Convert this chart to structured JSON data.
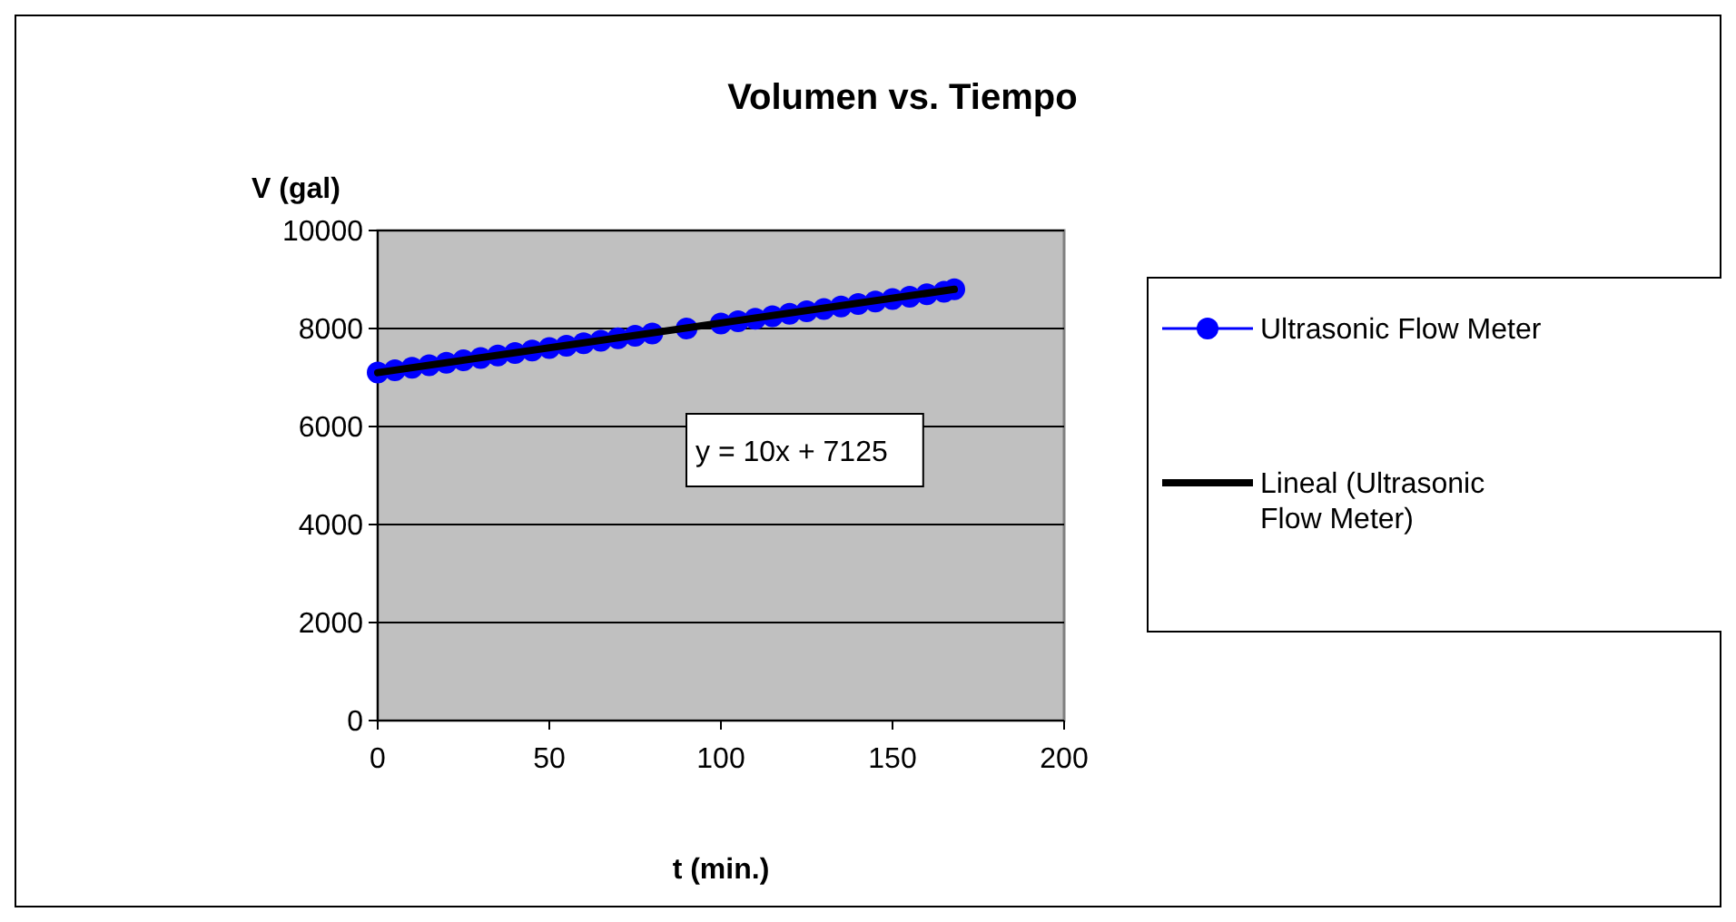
{
  "chart_data": {
    "type": "scatter",
    "title": "Volumen vs. Tiempo",
    "xlabel": "t (min.)",
    "ylabel": "V (gal)",
    "xlim": [
      0,
      200
    ],
    "xticks": [
      0,
      50,
      100,
      150,
      200
    ],
    "ylim": [
      0,
      10000
    ],
    "yticks": [
      0,
      2000,
      4000,
      6000,
      8000,
      10000
    ],
    "grid": "y",
    "legend": "right",
    "marker": "circle",
    "annotations": [
      "y = 10x + 7125"
    ],
    "series": [
      {
        "name": "Ultrasonic Flow Meter",
        "color": "#0000ff",
        "x": [
          0,
          5,
          10,
          15,
          20,
          25,
          30,
          35,
          40,
          45,
          50,
          55,
          60,
          65,
          70,
          75,
          80,
          90,
          100,
          105,
          110,
          115,
          120,
          125,
          130,
          135,
          140,
          145,
          150,
          155,
          160,
          165,
          168
        ],
        "values": [
          7100,
          7150,
          7200,
          7250,
          7300,
          7350,
          7400,
          7450,
          7500,
          7550,
          7600,
          7650,
          7700,
          7750,
          7800,
          7850,
          7900,
          8000,
          8100,
          8150,
          8200,
          8250,
          8300,
          8350,
          8400,
          8450,
          8500,
          8550,
          8600,
          8650,
          8700,
          8750,
          8800
        ]
      },
      {
        "name": "Lineal (Ultrasonic Flow Meter)",
        "color": "#000000",
        "type": "line",
        "marker": "none",
        "x": [
          0,
          168
        ],
        "values": [
          7100,
          8800
        ]
      }
    ]
  }
}
